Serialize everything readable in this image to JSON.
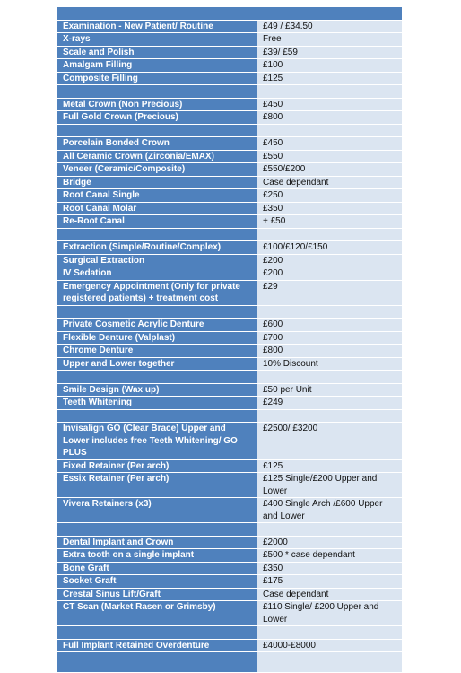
{
  "price_list": {
    "groups": [
      [
        {
          "treatment": "Examination - New Patient/ Routine",
          "price": "£49 / £34.50"
        },
        {
          "treatment": "X-rays",
          "price": "Free"
        },
        {
          "treatment": "Scale and Polish",
          "price": "£39/ £59"
        },
        {
          "treatment": "Amalgam Filling",
          "price": "£100"
        },
        {
          "treatment": "Composite Filling",
          "price": "£125"
        }
      ],
      [
        {
          "treatment": "Metal Crown (Non Precious)",
          "price": "£450"
        },
        {
          "treatment": "Full Gold Crown (Precious)",
          "price": "£800"
        }
      ],
      [
        {
          "treatment": "Porcelain Bonded Crown",
          "price": "£450"
        },
        {
          "treatment": "All Ceramic Crown (Zirconia/EMAX)",
          "price": "£550"
        },
        {
          "treatment": "Veneer (Ceramic/Composite)",
          "price": "£550/£200"
        },
        {
          "treatment": "Bridge",
          "price": "Case dependant"
        },
        {
          "treatment": "Root Canal Single",
          "price": "£250"
        },
        {
          "treatment": "Root Canal Molar",
          "price": "£350"
        },
        {
          "treatment": "Re-Root Canal",
          "price": "+ £50"
        }
      ],
      [
        {
          "treatment": "Extraction (Simple/Routine/Complex)",
          "price": " £100/£120/£150"
        },
        {
          "treatment": "Surgical Extraction",
          "price": "£200"
        },
        {
          "treatment": "IV Sedation",
          "price": "£200"
        },
        {
          "treatment": "Emergency Appointment (Only for private registered patients) + treatment cost",
          "price": "£29"
        }
      ],
      [
        {
          "treatment": "Private Cosmetic Acrylic Denture",
          "price": "£600"
        },
        {
          "treatment": "Flexible Denture (Valplast)",
          "price": "£700"
        },
        {
          "treatment": "Chrome Denture",
          "price": "£800"
        },
        {
          "treatment": "Upper and Lower together",
          "price": "10% Discount"
        }
      ],
      [
        {
          "treatment": "Smile Design (Wax up)",
          "price": "£50 per Unit"
        },
        {
          "treatment": "Teeth Whitening",
          "price": "£249"
        }
      ],
      [
        {
          "treatment": "Invisalign GO (Clear Brace) Upper and Lower includes free Teeth Whitening/ GO PLUS",
          "price": "£2500/ £3200"
        },
        {
          "treatment": "Fixed Retainer (Per arch)",
          "price": "£125"
        },
        {
          "treatment": "Essix Retainer (Per arch)",
          "price": "£125 Single/£200 Upper and Lower"
        },
        {
          "treatment": "Vivera Retainers (x3)",
          "price": "£400 Single Arch /£600 Upper and Lower"
        }
      ],
      [
        {
          "treatment": "Dental Implant and Crown",
          "price": "£2000"
        },
        {
          "treatment": "Extra tooth on a single implant",
          "price": "£500 * case dependant"
        },
        {
          "treatment": "Bone Graft",
          "price": "£350"
        },
        {
          "treatment": "Socket Graft",
          "price": "£175"
        },
        {
          "treatment": "Crestal Sinus Lift/Graft",
          "price": "Case dependant"
        },
        {
          "treatment": "CT Scan (Market Rasen or Grimsby)",
          "price": "£110 Single/ £200 Upper and Lower"
        }
      ],
      [
        {
          "treatment": "Full Implant Retained Overdenture",
          "price": "£4000-£8000"
        }
      ]
    ]
  }
}
